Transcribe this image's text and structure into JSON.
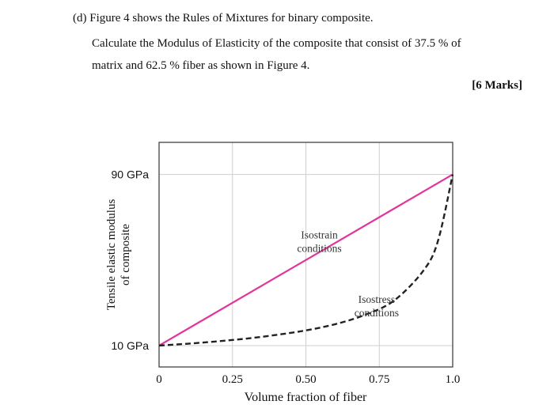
{
  "question": {
    "line1": "(d) Figure 4 shows the Rules of Mixtures for binary composite.",
    "line2": "Calculate the Modulus of Elasticity of the composite that consist of 37.5 % of",
    "line3": "matrix and 62.5 % fiber as shown in Figure 4.",
    "marks": "[6 Marks]"
  },
  "chart_data": {
    "type": "line",
    "title": "",
    "xlabel": "Volume fraction of fiber",
    "ylabel": "Tensile elastic modulus of composite",
    "ylabel_lines": [
      "Tensile elastic modulus",
      "of composite"
    ],
    "x_ticks": [
      "0",
      "0.25",
      "0.50",
      "0.75",
      "1.0"
    ],
    "x_tick_values": [
      0,
      0.25,
      0.5,
      0.75,
      1.0
    ],
    "y_ticks": [
      "10 GPa",
      "90 GPa"
    ],
    "y_tick_values": [
      10,
      90
    ],
    "xlim": [
      0,
      1.0
    ],
    "ylim": [
      0,
      105
    ],
    "grid": true,
    "series": [
      {
        "name": "Isostrain conditions",
        "label_lines": [
          "Isostrain",
          "conditions"
        ],
        "style": "solid",
        "color": "#e0359a",
        "x": [
          0,
          1.0
        ],
        "y": [
          10,
          90
        ]
      },
      {
        "name": "Isostress conditions",
        "label_lines": [
          "Isostress",
          "conditions"
        ],
        "style": "dashed",
        "color": "#222222",
        "x": [
          0,
          0.1,
          0.2,
          0.3,
          0.4,
          0.5,
          0.6,
          0.7,
          0.8,
          0.9,
          0.95,
          1.0
        ],
        "y": [
          10,
          10.9,
          12,
          13.3,
          15,
          17.1,
          20,
          24.3,
          31,
          45,
          59,
          90
        ]
      }
    ]
  }
}
